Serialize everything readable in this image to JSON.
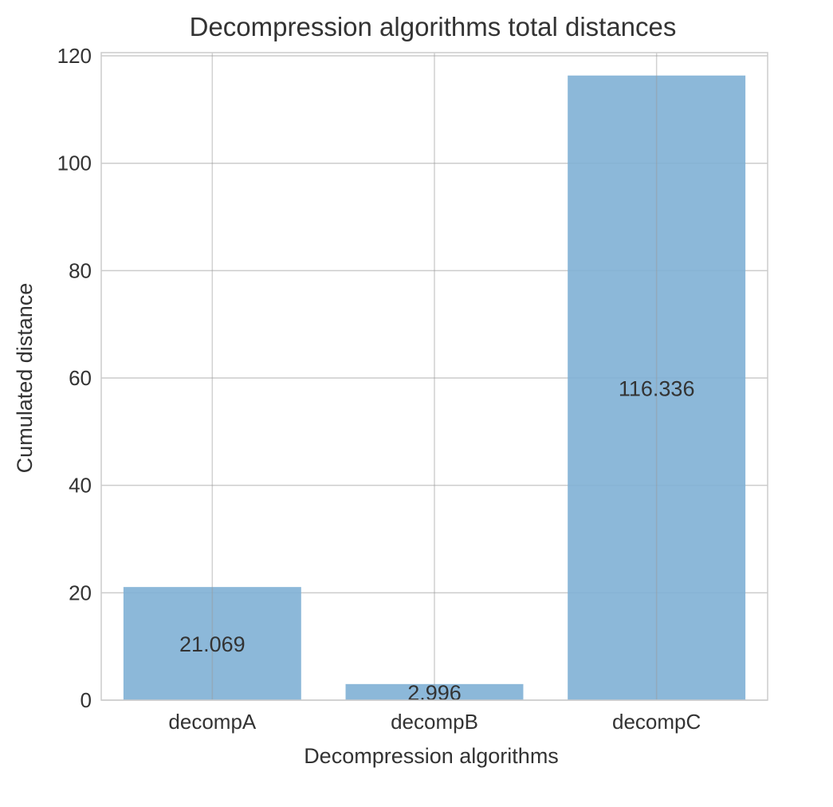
{
  "chart_data": {
    "type": "bar",
    "title": "Decompression algorithms total distances",
    "xlabel": "Decompression algorithms",
    "ylabel": "Cumulated distance",
    "categories": [
      "decompA",
      "decompB",
      "decompC"
    ],
    "values": [
      21.069,
      2.996,
      116.336
    ],
    "value_labels": [
      "21.069",
      "2.996",
      "116.336"
    ],
    "ylim": [
      0,
      120.6
    ],
    "yticks": [
      0,
      20,
      40,
      60,
      80,
      100,
      120
    ],
    "ytick_labels": [
      "0",
      "20",
      "40",
      "60",
      "80",
      "100",
      "120"
    ],
    "grid": true,
    "bar_color": "#7fb0d5",
    "bar_opacity": 0.9
  }
}
